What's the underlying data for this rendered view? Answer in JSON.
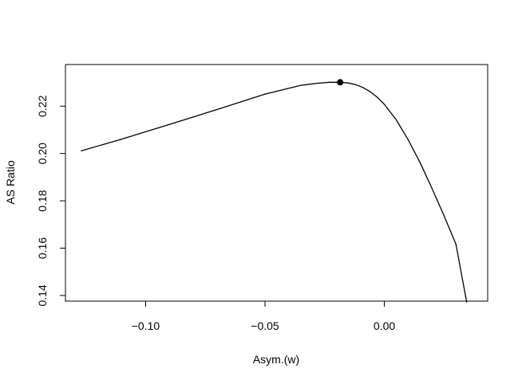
{
  "chart_data": {
    "type": "line",
    "title": "",
    "xlabel": "Asym.(w)",
    "ylabel": "AS Ratio",
    "xlim": [
      -0.1336,
      0.0433
    ],
    "ylim": [
      0.1376,
      0.2376
    ],
    "x_ticks": [
      -0.1,
      -0.05,
      0.0
    ],
    "x_tick_labels": [
      "−0.10",
      "−0.05",
      "0.00"
    ],
    "y_ticks": [
      0.14,
      0.16,
      0.18,
      0.2,
      0.22
    ],
    "y_tick_labels": [
      "0.14",
      "0.16",
      "0.18",
      "0.20",
      "0.22"
    ],
    "grid": false,
    "series": [
      {
        "x": [
          -0.127,
          -0.11,
          -0.09,
          -0.07,
          -0.05,
          -0.035,
          -0.028,
          -0.023,
          -0.0185,
          -0.015,
          -0.012,
          -0.009,
          -0.006,
          -0.003,
          0.0,
          0.005,
          0.01,
          0.015,
          0.02,
          0.025,
          0.03,
          0.0345
        ],
        "y": [
          0.2011,
          0.2061,
          0.2123,
          0.2186,
          0.2251,
          0.2288,
          0.2297,
          0.2301,
          0.2301,
          0.2298,
          0.2291,
          0.2279,
          0.2262,
          0.2238,
          0.2208,
          0.2142,
          0.2058,
          0.1961,
          0.1852,
          0.1737,
          0.1617,
          0.1372
        ]
      }
    ],
    "highlight_point": {
      "x": -0.0185,
      "y": 0.2301
    }
  }
}
